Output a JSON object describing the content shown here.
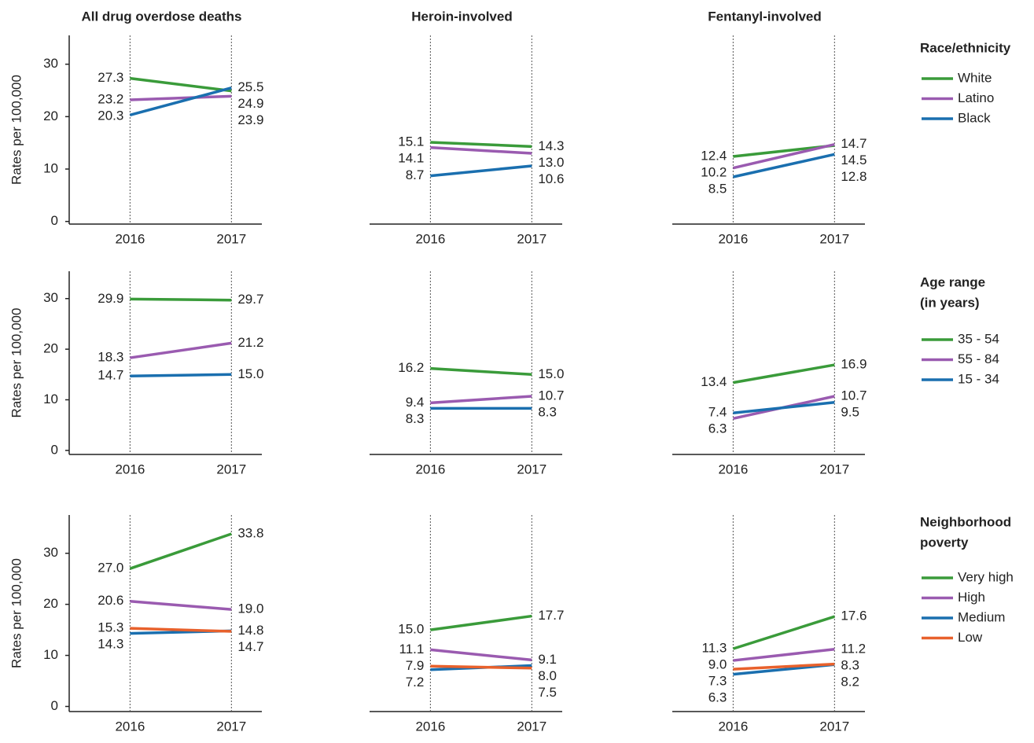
{
  "chart_data": [
    {
      "type": "line",
      "title": "All drug overdose deaths",
      "ylabel": "Rates per 100,000",
      "x": [
        2016,
        2017
      ],
      "xlim": [
        2015.4,
        2017.3
      ],
      "xticks": [
        2016,
        2017
      ],
      "ylim": [
        -0.5,
        35.5
      ],
      "yticks": [
        0,
        10,
        20,
        30
      ],
      "grid": true,
      "series": [
        {
          "color": "#3a9b3a",
          "values": [
            27.3,
            24.9
          ],
          "value_labels": [
            "27.3",
            "24.9"
          ]
        },
        {
          "color": "#9a5bb0",
          "values": [
            23.2,
            23.9
          ],
          "value_labels": [
            "23.2",
            "23.9"
          ]
        },
        {
          "color": "#1a6faf",
          "values": [
            20.3,
            25.5
          ],
          "value_labels": [
            "20.3",
            "25.5"
          ]
        }
      ]
    },
    {
      "type": "line",
      "title": "Heroin-involved",
      "x": [
        2016,
        2017
      ],
      "xlim": [
        2015.4,
        2017.3
      ],
      "xticks": [
        2016,
        2017
      ],
      "ylim": [
        -0.5,
        35.5
      ],
      "grid": true,
      "series": [
        {
          "color": "#3a9b3a",
          "values": [
            15.1,
            14.3
          ],
          "value_labels": [
            "15.1",
            "14.3"
          ]
        },
        {
          "color": "#9a5bb0",
          "values": [
            14.1,
            13.0
          ],
          "value_labels": [
            "14.1",
            "13.0"
          ]
        },
        {
          "color": "#1a6faf",
          "values": [
            8.7,
            10.6
          ],
          "value_labels": [
            "8.7",
            "10.6"
          ]
        }
      ]
    },
    {
      "type": "line",
      "title": "Fentanyl-involved",
      "x": [
        2016,
        2017
      ],
      "xlim": [
        2015.4,
        2017.3
      ],
      "xticks": [
        2016,
        2017
      ],
      "ylim": [
        -0.5,
        35.5
      ],
      "grid": true,
      "legend_title": [
        "Race/ethnicity"
      ],
      "series": [
        {
          "name": "White",
          "color": "#3a9b3a",
          "values": [
            12.4,
            14.5
          ],
          "value_labels": [
            "12.4",
            "14.5"
          ]
        },
        {
          "name": "Latino",
          "color": "#9a5bb0",
          "values": [
            10.2,
            14.7
          ],
          "value_labels": [
            "10.2",
            "14.7"
          ]
        },
        {
          "name": "Black",
          "color": "#1a6faf",
          "values": [
            8.5,
            12.8
          ],
          "value_labels": [
            "8.5",
            "12.8"
          ]
        }
      ]
    },
    {
      "type": "line",
      "ylabel": "Rates per 100,000",
      "x": [
        2016,
        2017
      ],
      "xlim": [
        2015.4,
        2017.3
      ],
      "xticks": [
        2016,
        2017
      ],
      "ylim": [
        -0.8,
        35.4
      ],
      "yticks": [
        0,
        10,
        20,
        30
      ],
      "grid": true,
      "series": [
        {
          "color": "#3a9b3a",
          "values": [
            29.9,
            29.7
          ],
          "value_labels": [
            "29.9",
            "29.7"
          ]
        },
        {
          "color": "#9a5bb0",
          "values": [
            18.3,
            21.2
          ],
          "value_labels": [
            "18.3",
            "21.2"
          ]
        },
        {
          "color": "#1a6faf",
          "values": [
            14.7,
            15.0
          ],
          "value_labels": [
            "14.7",
            "15.0"
          ]
        }
      ]
    },
    {
      "type": "line",
      "x": [
        2016,
        2017
      ],
      "xlim": [
        2015.4,
        2017.3
      ],
      "xticks": [
        2016,
        2017
      ],
      "ylim": [
        -0.8,
        35.4
      ],
      "grid": true,
      "series": [
        {
          "color": "#3a9b3a",
          "values": [
            16.2,
            15.0
          ],
          "value_labels": [
            "16.2",
            "15.0"
          ]
        },
        {
          "color": "#9a5bb0",
          "values": [
            9.4,
            10.7
          ],
          "value_labels": [
            "9.4",
            "10.7"
          ]
        },
        {
          "color": "#1a6faf",
          "values": [
            8.3,
            8.3
          ],
          "value_labels": [
            "8.3",
            "8.3"
          ]
        }
      ]
    },
    {
      "type": "line",
      "x": [
        2016,
        2017
      ],
      "xlim": [
        2015.4,
        2017.3
      ],
      "xticks": [
        2016,
        2017
      ],
      "ylim": [
        -0.8,
        35.4
      ],
      "grid": true,
      "legend_title": [
        "Age range",
        "(in years)"
      ],
      "series": [
        {
          "name": "35 - 54",
          "color": "#3a9b3a",
          "values": [
            13.4,
            16.9
          ],
          "value_labels": [
            "13.4",
            "16.9"
          ]
        },
        {
          "name": "55 - 84",
          "color": "#9a5bb0",
          "values": [
            6.3,
            10.7
          ],
          "value_labels": [
            "6.3",
            "10.7"
          ]
        },
        {
          "name": "15 - 34",
          "color": "#1a6faf",
          "values": [
            7.4,
            9.5
          ],
          "value_labels": [
            "7.4",
            "9.5"
          ]
        }
      ]
    },
    {
      "type": "line",
      "ylabel": "Rates per 100,000",
      "x": [
        2016,
        2017
      ],
      "xlim": [
        2015.4,
        2017.3
      ],
      "xticks": [
        2016,
        2017
      ],
      "ylim": [
        -1,
        37.5
      ],
      "yticks": [
        0,
        10,
        20,
        30
      ],
      "grid": true,
      "series": [
        {
          "color": "#3a9b3a",
          "values": [
            27.0,
            33.8
          ],
          "value_labels": [
            "27.0",
            "33.8"
          ]
        },
        {
          "color": "#9a5bb0",
          "values": [
            20.6,
            19.0
          ],
          "value_labels": [
            "20.6",
            "19.0"
          ]
        },
        {
          "color": "#1a6faf",
          "values": [
            14.3,
            14.8
          ],
          "value_labels": [
            "14.3",
            "14.8"
          ]
        },
        {
          "color": "#e8612c",
          "values": [
            15.3,
            14.7
          ],
          "value_labels": [
            "15.3",
            "14.7"
          ]
        }
      ]
    },
    {
      "type": "line",
      "x": [
        2016,
        2017
      ],
      "xlim": [
        2015.4,
        2017.3
      ],
      "xticks": [
        2016,
        2017
      ],
      "ylim": [
        -1,
        37.5
      ],
      "grid": true,
      "series": [
        {
          "color": "#3a9b3a",
          "values": [
            15.0,
            17.7
          ],
          "value_labels": [
            "15.0",
            "17.7"
          ]
        },
        {
          "color": "#9a5bb0",
          "values": [
            11.1,
            9.1
          ],
          "value_labels": [
            "11.1",
            "9.1"
          ]
        },
        {
          "color": "#1a6faf",
          "values": [
            7.2,
            8.0
          ],
          "value_labels": [
            "7.2",
            "8.0"
          ]
        },
        {
          "color": "#e8612c",
          "values": [
            7.9,
            7.5
          ],
          "value_labels": [
            "7.9",
            "7.5"
          ]
        }
      ]
    },
    {
      "type": "line",
      "x": [
        2016,
        2017
      ],
      "xlim": [
        2015.4,
        2017.3
      ],
      "xticks": [
        2016,
        2017
      ],
      "ylim": [
        -1,
        37.5
      ],
      "grid": true,
      "legend_title": [
        "Neighborhood",
        "poverty"
      ],
      "series": [
        {
          "name": "Very high",
          "color": "#3a9b3a",
          "values": [
            11.3,
            17.6
          ],
          "value_labels": [
            "11.3",
            "17.6"
          ]
        },
        {
          "name": "High",
          "color": "#9a5bb0",
          "values": [
            9.0,
            11.2
          ],
          "value_labels": [
            "9.0",
            "11.2"
          ]
        },
        {
          "name": "Medium",
          "color": "#1a6faf",
          "values": [
            6.3,
            8.2
          ],
          "value_labels": [
            "6.3",
            "8.2"
          ]
        },
        {
          "name": "Low",
          "color": "#e8612c",
          "values": [
            7.3,
            8.3
          ],
          "value_labels": [
            "7.3",
            "8.3"
          ]
        }
      ]
    }
  ]
}
